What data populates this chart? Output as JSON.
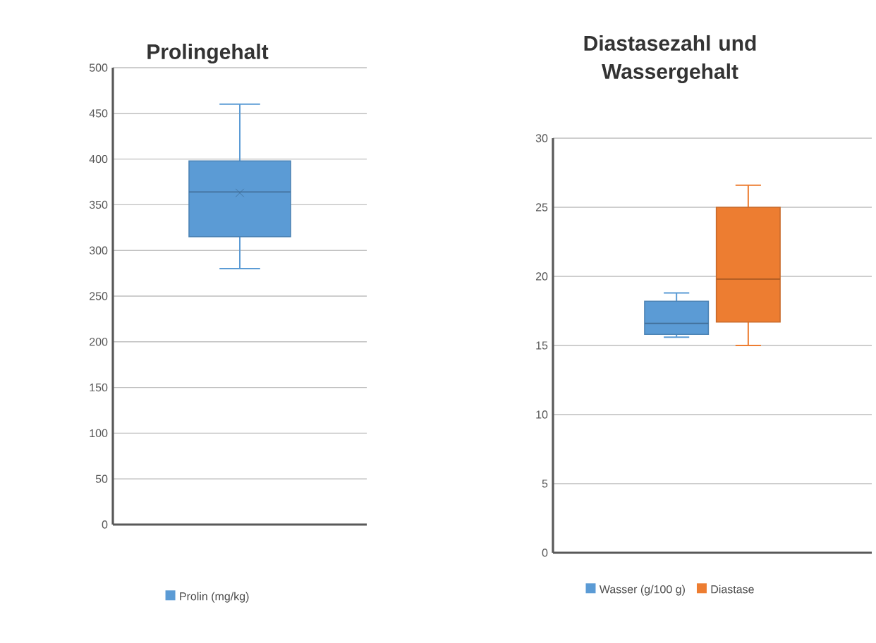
{
  "chart_data": [
    {
      "type": "box",
      "title": "Prolingehalt",
      "categories": [
        null
      ],
      "tick_labels": "y",
      "grid": "y",
      "legend": "bottom",
      "ylim": [
        0,
        500
      ],
      "yticks": [
        0,
        50,
        100,
        150,
        200,
        250,
        300,
        350,
        400,
        450,
        500
      ],
      "series": [
        {
          "name": "Prolin (mg/kg)",
          "color": "#5b9bd5",
          "boxes": [
            {
              "low": 280,
              "q1": 315,
              "median": 364,
              "q3": 398,
              "high": 460,
              "mean": 363
            }
          ]
        }
      ]
    },
    {
      "type": "box",
      "title": "Diastasezahl und Wassergehalt",
      "categories": [
        null
      ],
      "tick_labels": "y",
      "grid": "y",
      "legend": "bottom",
      "ylim": [
        0,
        30
      ],
      "yticks": [
        0,
        5,
        10,
        15,
        20,
        25,
        30
      ],
      "series": [
        {
          "name": "Wasser (g/100 g)",
          "color": "#5b9bd5",
          "boxes": [
            {
              "low": 15.6,
              "q1": 15.8,
              "median": 16.6,
              "q3": 18.2,
              "high": 18.8
            }
          ]
        },
        {
          "name": "Diastase",
          "color": "#ed7d31",
          "boxes": [
            {
              "low": 15,
              "q1": 16.7,
              "median": 19.8,
              "q3": 25,
              "high": 26.6
            }
          ]
        }
      ]
    }
  ]
}
